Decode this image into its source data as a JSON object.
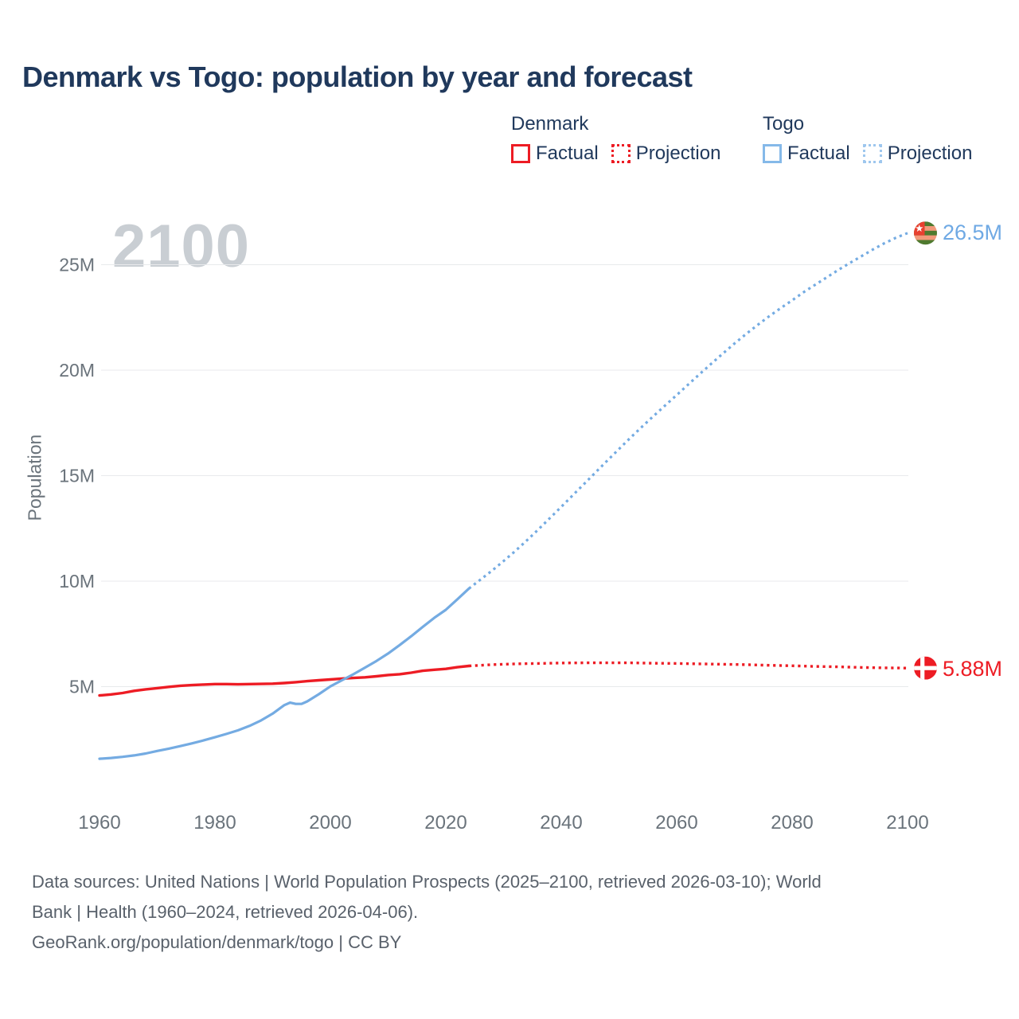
{
  "title": "Denmark vs Togo: population by year and forecast",
  "watermark": "2100",
  "legend": {
    "groups": [
      {
        "name": "Denmark",
        "items": [
          {
            "label": "Factual",
            "style": "solid",
            "color": "#ed1c24"
          },
          {
            "label": "Projection",
            "style": "dotted",
            "color": "#ed1c24"
          }
        ]
      },
      {
        "name": "Togo",
        "items": [
          {
            "label": "Factual",
            "style": "solid",
            "color": "#85b9e9"
          },
          {
            "label": "Projection",
            "style": "dotted",
            "color": "#9ec7ee"
          }
        ]
      }
    ]
  },
  "chart_data": {
    "type": "line",
    "title": "Denmark vs Togo: population by year and forecast",
    "xlabel": "",
    "ylabel": "Population",
    "xlim": [
      1960,
      2100
    ],
    "ylim": [
      0,
      27.5
    ],
    "grid": "horizontal-only",
    "legend_position": "top-right",
    "x_ticks": [
      1960,
      1980,
      2000,
      2020,
      2040,
      2060,
      2080,
      2100
    ],
    "y_ticks": [
      {
        "value": 5,
        "label": "5M"
      },
      {
        "value": 10,
        "label": "10M"
      },
      {
        "value": 15,
        "label": "15M"
      },
      {
        "value": 20,
        "label": "20M"
      },
      {
        "value": 25,
        "label": "25M"
      }
    ],
    "series": [
      {
        "name": "Denmark Factual",
        "color": "#ed1c24",
        "line": "solid",
        "width": 3.4,
        "points": [
          [
            1960,
            4.58
          ],
          [
            1962,
            4.63
          ],
          [
            1964,
            4.7
          ],
          [
            1966,
            4.8
          ],
          [
            1968,
            4.87
          ],
          [
            1970,
            4.93
          ],
          [
            1972,
            4.99
          ],
          [
            1974,
            5.04
          ],
          [
            1976,
            5.07
          ],
          [
            1978,
            5.1
          ],
          [
            1980,
            5.12
          ],
          [
            1982,
            5.12
          ],
          [
            1984,
            5.11
          ],
          [
            1986,
            5.12
          ],
          [
            1988,
            5.13
          ],
          [
            1990,
            5.14
          ],
          [
            1992,
            5.17
          ],
          [
            1994,
            5.21
          ],
          [
            1996,
            5.26
          ],
          [
            1998,
            5.3
          ],
          [
            2000,
            5.34
          ],
          [
            2002,
            5.38
          ],
          [
            2004,
            5.41
          ],
          [
            2006,
            5.44
          ],
          [
            2008,
            5.49
          ],
          [
            2010,
            5.55
          ],
          [
            2012,
            5.59
          ],
          [
            2014,
            5.66
          ],
          [
            2016,
            5.75
          ],
          [
            2018,
            5.8
          ],
          [
            2020,
            5.84
          ],
          [
            2022,
            5.92
          ],
          [
            2024,
            5.98
          ]
        ]
      },
      {
        "name": "Denmark Projection",
        "color": "#ed1c24",
        "line": "dotted",
        "width": 3.4,
        "points": [
          [
            2024,
            5.98
          ],
          [
            2026,
            6.01
          ],
          [
            2028,
            6.04
          ],
          [
            2030,
            6.06
          ],
          [
            2032,
            6.08
          ],
          [
            2034,
            6.09
          ],
          [
            2036,
            6.1
          ],
          [
            2038,
            6.11
          ],
          [
            2040,
            6.12
          ],
          [
            2044,
            6.13
          ],
          [
            2048,
            6.13
          ],
          [
            2052,
            6.13
          ],
          [
            2056,
            6.11
          ],
          [
            2060,
            6.1
          ],
          [
            2064,
            6.08
          ],
          [
            2068,
            6.06
          ],
          [
            2072,
            6.04
          ],
          [
            2076,
            6.01
          ],
          [
            2080,
            5.99
          ],
          [
            2084,
            5.96
          ],
          [
            2088,
            5.94
          ],
          [
            2092,
            5.91
          ],
          [
            2096,
            5.89
          ],
          [
            2100,
            5.88
          ]
        ]
      },
      {
        "name": "Togo Factual",
        "color": "#74abe2",
        "line": "solid",
        "width": 3.2,
        "points": [
          [
            1960,
            1.58
          ],
          [
            1962,
            1.62
          ],
          [
            1964,
            1.67
          ],
          [
            1966,
            1.74
          ],
          [
            1968,
            1.83
          ],
          [
            1970,
            1.95
          ],
          [
            1972,
            2.06
          ],
          [
            1974,
            2.18
          ],
          [
            1976,
            2.31
          ],
          [
            1978,
            2.45
          ],
          [
            1980,
            2.6
          ],
          [
            1982,
            2.76
          ],
          [
            1984,
            2.93
          ],
          [
            1986,
            3.14
          ],
          [
            1988,
            3.4
          ],
          [
            1990,
            3.72
          ],
          [
            1992,
            4.12
          ],
          [
            1993,
            4.24
          ],
          [
            1994,
            4.18
          ],
          [
            1995,
            4.18
          ],
          [
            1996,
            4.3
          ],
          [
            1998,
            4.64
          ],
          [
            2000,
            5.01
          ],
          [
            2002,
            5.3
          ],
          [
            2004,
            5.59
          ],
          [
            2006,
            5.9
          ],
          [
            2008,
            6.22
          ],
          [
            2010,
            6.57
          ],
          [
            2012,
            6.97
          ],
          [
            2014,
            7.39
          ],
          [
            2016,
            7.83
          ],
          [
            2018,
            8.26
          ],
          [
            2020,
            8.64
          ],
          [
            2022,
            9.14
          ],
          [
            2024,
            9.65
          ]
        ]
      },
      {
        "name": "Togo Projection",
        "color": "#74abe2",
        "line": "dotted",
        "width": 3.2,
        "points": [
          [
            2024,
            9.65
          ],
          [
            2026,
            10.07
          ],
          [
            2028,
            10.5
          ],
          [
            2030,
            10.95
          ],
          [
            2032,
            11.42
          ],
          [
            2034,
            11.92
          ],
          [
            2036,
            12.44
          ],
          [
            2038,
            12.98
          ],
          [
            2040,
            13.52
          ],
          [
            2042,
            14.07
          ],
          [
            2044,
            14.62
          ],
          [
            2046,
            15.17
          ],
          [
            2048,
            15.72
          ],
          [
            2050,
            16.26
          ],
          [
            2052,
            16.8
          ],
          [
            2054,
            17.32
          ],
          [
            2056,
            17.83
          ],
          [
            2058,
            18.33
          ],
          [
            2060,
            18.82
          ],
          [
            2062,
            19.32
          ],
          [
            2064,
            19.82
          ],
          [
            2066,
            20.31
          ],
          [
            2068,
            20.79
          ],
          [
            2070,
            21.26
          ],
          [
            2072,
            21.71
          ],
          [
            2074,
            22.14
          ],
          [
            2076,
            22.55
          ],
          [
            2078,
            22.94
          ],
          [
            2080,
            23.31
          ],
          [
            2082,
            23.7
          ],
          [
            2084,
            24.05
          ],
          [
            2086,
            24.4
          ],
          [
            2088,
            24.75
          ],
          [
            2090,
            25.08
          ],
          [
            2092,
            25.4
          ],
          [
            2094,
            25.72
          ],
          [
            2096,
            26.02
          ],
          [
            2098,
            26.28
          ],
          [
            2100,
            26.5
          ]
        ]
      }
    ],
    "end_labels": [
      {
        "series": "Togo",
        "label": "26.5M",
        "value": 26.5,
        "year": 2100,
        "color": "#6fa9e4",
        "flag": "togo"
      },
      {
        "series": "Denmark",
        "label": "5.88M",
        "value": 5.88,
        "year": 2100,
        "color": "#ed1c24",
        "flag": "denmark"
      }
    ],
    "flags": {
      "denmark": {
        "field": "#ed1c24",
        "cross": "#ffffff"
      },
      "togo": {
        "stripe_green": "#4f7a2f",
        "stripe_yellow": "#f2997a",
        "canton": "#e8402f",
        "star": "#ffffff"
      }
    },
    "colors": {
      "denmark": "#ed1c24",
      "togo": "#74abe2",
      "grid": "#e8eaec",
      "tick_text": "#6a737b",
      "watermark": "#c9ced3",
      "heading": "#20395c",
      "footer_text": "#59616b"
    }
  },
  "footer": {
    "lines": [
      "Data sources: United Nations | World Population Prospects (2025–2100, retrieved 2026-03-10); World",
      "Bank | Health (1960–2024, retrieved 2026-04-06).",
      "GeoRank.org/population/denmark/togo | CC BY"
    ]
  }
}
